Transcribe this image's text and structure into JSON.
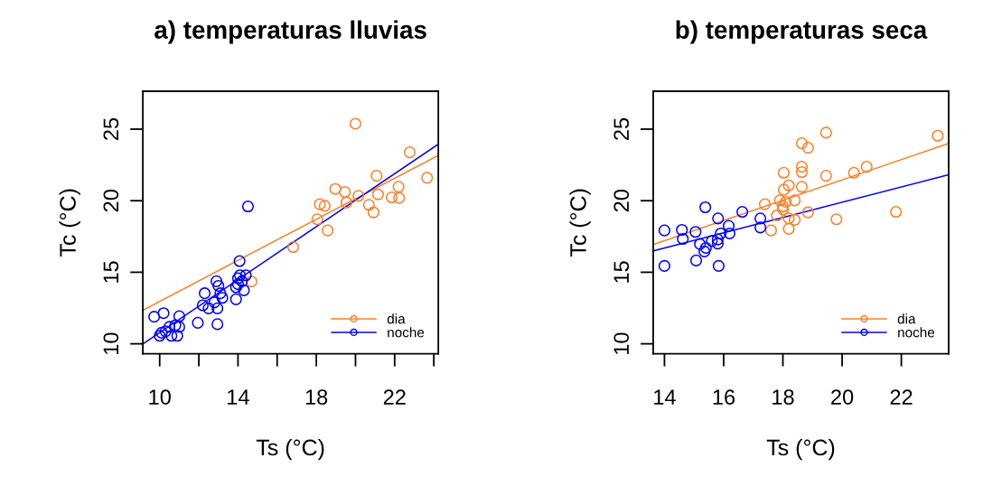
{
  "chart_data": [
    {
      "type": "scatter",
      "title": "a) temperaturas lluvias",
      "xlabel": "Ts (°C)",
      "ylabel": "Tc (°C)",
      "xlim": [
        9.14,
        24.23
      ],
      "ylim": [
        9.3,
        27.65
      ],
      "xticks": [
        10,
        {
          "value": 12,
          "label": null
        },
        14,
        {
          "value": 16,
          "label": null
        },
        18,
        {
          "value": 20,
          "label": null
        },
        22,
        {
          "value": 24,
          "label": null
        }
      ],
      "yticks": [
        10,
        15,
        20,
        25
      ],
      "grid": false,
      "legend": "bottom right",
      "marker": "circle",
      "series": [
        {
          "name": "dia",
          "color": "#ff7f24",
          "x": [
            20.0,
            22.77,
            23.66,
            21.08,
            18.97,
            19.46,
            20.15,
            21.15,
            22.2,
            21.85,
            22.23,
            19.54,
            18.18,
            18.43,
            20.69,
            20.92,
            18.05,
            18.58,
            16.82,
            14.69
          ],
          "values": [
            25.38,
            23.38,
            21.6,
            21.74,
            20.82,
            20.61,
            20.34,
            20.44,
            20.97,
            20.23,
            20.19,
            19.87,
            19.75,
            19.64,
            19.71,
            19.18,
            18.7,
            17.92,
            16.76,
            14.35
          ]
        },
        {
          "name": "noche",
          "color": "#0000ff",
          "x": [
            14.51,
            14.08,
            9.72,
            10.2,
            11.0,
            10.0,
            10.3,
            10.5,
            10.8,
            11.0,
            10.6,
            10.9,
            10.1,
            11.95,
            12.95,
            12.3,
            12.2,
            12.5,
            12.9,
            13.0,
            13.1,
            12.95,
            12.8,
            13.2,
            14.0,
            14.1,
            14.0,
            13.9,
            14.3,
            14.4,
            13.9,
            14.2
          ],
          "values": [
            19.6,
            15.78,
            11.89,
            12.14,
            11.93,
            10.56,
            10.87,
            11.18,
            11.29,
            11.18,
            10.56,
            10.56,
            10.77,
            11.47,
            11.37,
            13.53,
            12.69,
            12.48,
            14.37,
            14.05,
            13.53,
            12.48,
            12.9,
            13.21,
            14.58,
            14.79,
            14.16,
            13.95,
            13.74,
            14.79,
            13.11,
            14.37
          ]
        },
        {
          "type": "line",
          "marker": "none",
          "color": "#ff7f24",
          "x": [
            9.15,
            24.23
          ],
          "values": [
            12.35,
            23.17
          ]
        },
        {
          "type": "line",
          "marker": "none",
          "color": "#0000ff",
          "x": [
            9.15,
            24.23
          ],
          "values": [
            10.0,
            23.95
          ]
        }
      ]
    },
    {
      "type": "scatter",
      "title": "b) temperaturas seca",
      "xlabel": "Ts (°C)",
      "ylabel": "Tc (°C)",
      "xlim": [
        13.62,
        23.6
      ],
      "ylim": [
        9.3,
        27.65
      ],
      "xticks": [
        14,
        16,
        18,
        20,
        22
      ],
      "yticks": [
        10,
        15,
        20,
        25
      ],
      "grid": false,
      "legend": "bottom right",
      "marker": "circle",
      "series": [
        {
          "name": "dia",
          "color": "#ff7f24",
          "x": [
            23.23,
            19.46,
            18.64,
            18.85,
            18.64,
            18.64,
            18.03,
            19.46,
            20.4,
            20.83,
            18.2,
            18.03,
            18.64,
            17.39,
            17.9,
            18.1,
            18.4,
            18.0,
            17.8,
            18.2,
            18.4,
            18.0,
            17.6,
            18.2,
            18.85,
            19.81,
            21.82
          ],
          "values": [
            24.54,
            24.75,
            24.01,
            23.7,
            22.37,
            22.0,
            21.95,
            21.74,
            21.95,
            22.37,
            21.07,
            20.76,
            20.97,
            19.75,
            20.02,
            19.92,
            20.02,
            19.6,
            18.97,
            18.76,
            18.66,
            19.39,
            17.92,
            18.03,
            19.18,
            18.7,
            19.22
          ]
        },
        {
          "name": "noche",
          "color": "#0000ff",
          "x": [
            14.0,
            14.0,
            14.59,
            14.62,
            15.05,
            15.38,
            15.07,
            15.81,
            16.17,
            16.63,
            17.24,
            17.24,
            15.83,
            15.2,
            15.4,
            15.35,
            15.6,
            15.8,
            15.9,
            16.2,
            15.8
          ],
          "values": [
            17.92,
            15.44,
            17.96,
            17.33,
            17.82,
            19.54,
            15.82,
            18.76,
            18.24,
            19.22,
            18.76,
            18.13,
            15.44,
            16.97,
            16.7,
            16.45,
            17.18,
            17.29,
            17.71,
            17.71,
            17.0
          ]
        },
        {
          "type": "line",
          "marker": "none",
          "color": "#ff7f24",
          "x": [
            13.62,
            23.6
          ],
          "values": [
            16.93,
            24.0
          ]
        },
        {
          "type": "line",
          "marker": "none",
          "color": "#0000ff",
          "x": [
            13.62,
            23.6
          ],
          "values": [
            16.49,
            21.81
          ]
        }
      ]
    }
  ]
}
